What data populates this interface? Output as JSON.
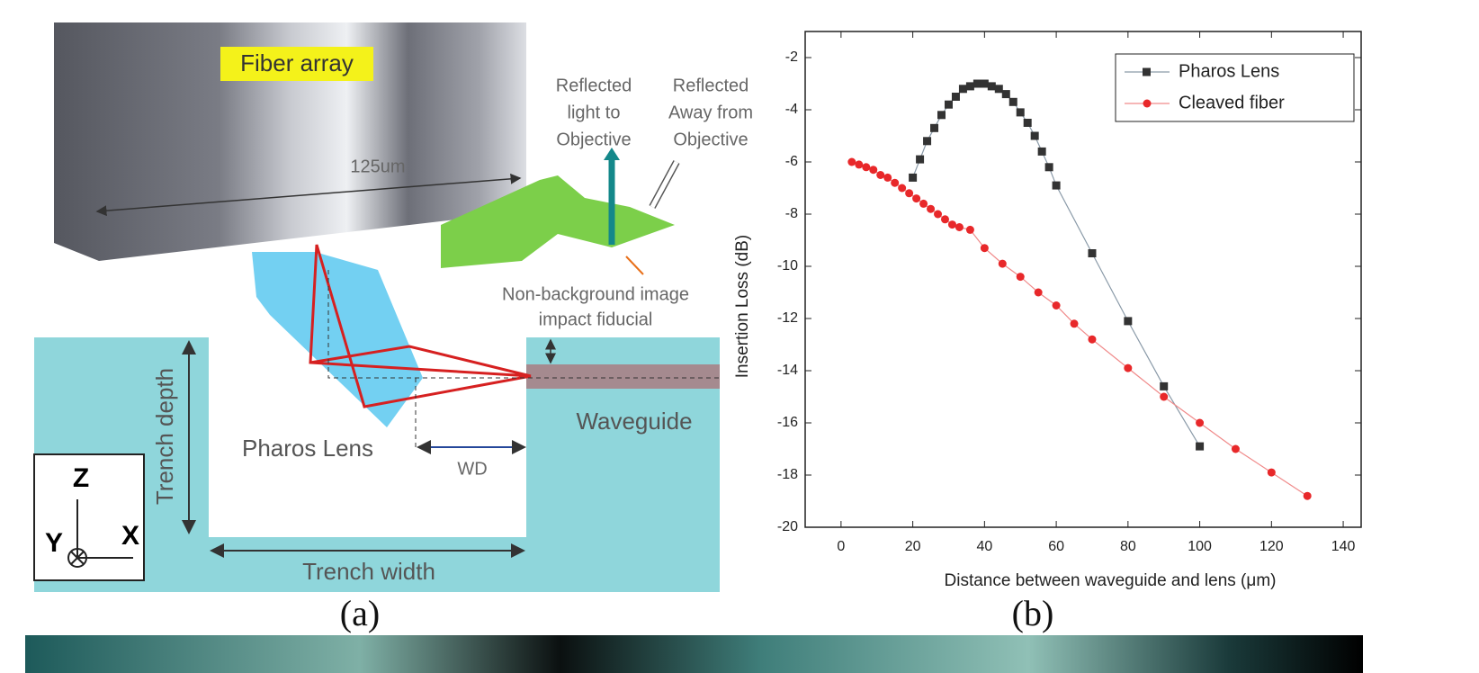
{
  "diagram": {
    "fiber_array": "Fiber array",
    "width_label": "125um",
    "reflected_to": [
      "Reflected",
      "light to",
      "Objective"
    ],
    "reflected_away": [
      "Reflected",
      "Away from",
      "Objective"
    ],
    "fiducial": [
      "Non-background image",
      "impact fiducial"
    ],
    "trench_depth": "Trench depth",
    "lens": "Pharos Lens",
    "wd": "WD",
    "waveguide": "Waveguide",
    "trench_width": "Trench width",
    "axis_z": "Z",
    "axis_y": "Y",
    "axis_x": "X",
    "caption": "(a)"
  },
  "chart_data": {
    "type": "line",
    "caption": "(b)",
    "x_label": "Distance between waveguide and lens (μm)",
    "y_label": "Insertion Loss (dB)",
    "xlim": [
      -10,
      145
    ],
    "ylim": [
      -20,
      -1
    ],
    "xticks": [
      0,
      20,
      40,
      60,
      80,
      100,
      120,
      140
    ],
    "yticks": [
      -20,
      -18,
      -16,
      -14,
      -12,
      -10,
      -8,
      -6,
      -4,
      -2
    ],
    "legend": "upper right",
    "series": [
      {
        "name": "Pharos Lens",
        "color": "#333333",
        "line_color": "#8a9aa8",
        "marker": "square",
        "x": [
          20,
          22,
          24,
          26,
          28,
          30,
          32,
          34,
          36,
          38,
          40,
          42,
          44,
          46,
          48,
          50,
          52,
          54,
          56,
          58,
          60,
          70,
          80,
          90,
          100
        ],
        "values": [
          -6.6,
          -5.9,
          -5.2,
          -4.7,
          -4.2,
          -3.8,
          -3.5,
          -3.2,
          -3.1,
          -3.0,
          -3.0,
          -3.1,
          -3.2,
          -3.4,
          -3.7,
          -4.1,
          -4.5,
          -5.0,
          -5.6,
          -6.2,
          -6.9,
          -9.5,
          -12.1,
          -14.6,
          -16.9
        ]
      },
      {
        "name": "Cleaved fiber",
        "color": "#e8282a",
        "line_color": "#f08a8a",
        "marker": "circle",
        "x": [
          3,
          5,
          7,
          9,
          11,
          13,
          15,
          17,
          19,
          21,
          23,
          25,
          27,
          29,
          31,
          33,
          36,
          40,
          45,
          50,
          55,
          60,
          65,
          70,
          80,
          90,
          100,
          110,
          120,
          130
        ],
        "values": [
          -6.0,
          -6.1,
          -6.2,
          -6.3,
          -6.5,
          -6.6,
          -6.8,
          -7.0,
          -7.2,
          -7.4,
          -7.6,
          -7.8,
          -8.0,
          -8.2,
          -8.4,
          -8.5,
          -8.6,
          -9.3,
          -9.9,
          -10.4,
          -11.0,
          -11.5,
          -12.2,
          -12.8,
          -13.9,
          -15.0,
          -16.0,
          -17.0,
          -17.9,
          -18.8
        ]
      }
    ]
  }
}
